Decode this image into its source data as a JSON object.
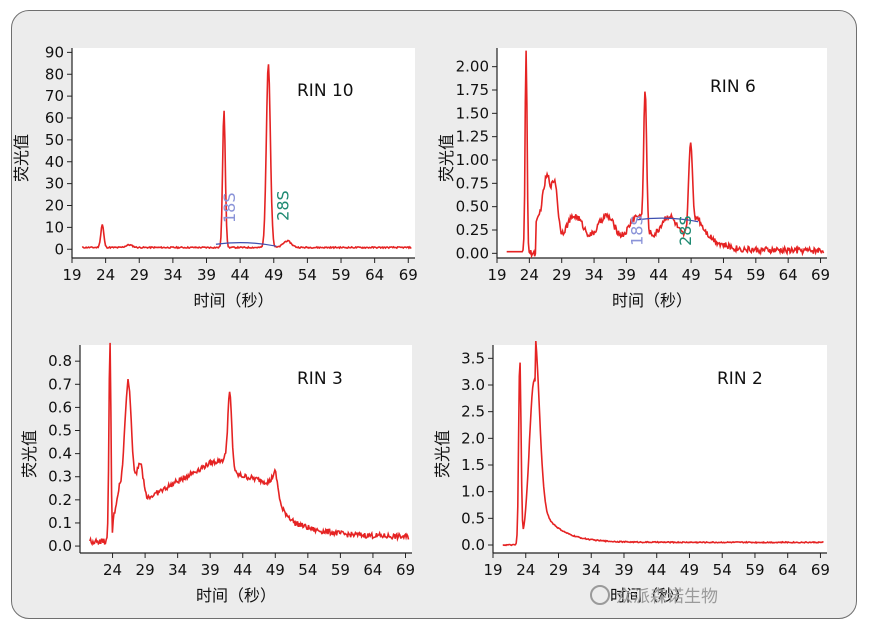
{
  "charts": [
    {
      "id": "rin10",
      "type": "line",
      "rin_label": "RIN 10",
      "ylabel": "荧光值",
      "xlabel": "时间（秒）",
      "xlim": [
        19,
        70
      ],
      "ylim": [
        -4,
        92
      ],
      "xticks": [
        "19",
        "24",
        "29",
        "34",
        "39",
        "44",
        "49",
        "54",
        "59",
        "64",
        "69"
      ],
      "yticks": [
        "0",
        "10",
        "20",
        "30",
        "40",
        "50",
        "60",
        "70",
        "80",
        "90"
      ],
      "annotations": [
        {
          "text": "18S",
          "x": 43.2,
          "y": 12,
          "color": "#8a93d8"
        },
        {
          "text": "28S",
          "x": 51.2,
          "y": 13,
          "color": "#1f8a72"
        }
      ],
      "peaks": [
        {
          "x": 23.5,
          "h": 10.5,
          "w": 0.22
        },
        {
          "x": 27.5,
          "h": 1.2,
          "w": 0.5
        },
        {
          "x": 41.6,
          "h": 63,
          "w": 0.2
        },
        {
          "x": 48.2,
          "h": 84,
          "w": 0.3
        },
        {
          "x": 51.0,
          "h": 3,
          "w": 0.6
        }
      ],
      "baseline": 0.8,
      "noise": 0.3
    },
    {
      "id": "rin6",
      "type": "line",
      "rin_label": "RIN 6",
      "ylabel": "荧光值",
      "xlabel": "时间（秒）",
      "xlim": [
        19,
        70
      ],
      "ylim": [
        -0.05,
        2.2
      ],
      "xticks": [
        "19",
        "24",
        "29",
        "34",
        "39",
        "44",
        "49",
        "54",
        "59",
        "64",
        "69"
      ],
      "yticks": [
        "0.00",
        "0.25",
        "0.50",
        "0.75",
        "1.00",
        "1.25",
        "1.50",
        "1.75",
        "2.00"
      ],
      "annotations": [
        {
          "text": "18S",
          "x": 41.5,
          "y": 0.08,
          "color": "#8a93d8"
        },
        {
          "text": "28S",
          "x": 49.0,
          "y": 0.08,
          "color": "#1f8a72"
        }
      ],
      "peaks": [
        {
          "x": 23.5,
          "h": 2.2,
          "w": 0.15
        },
        {
          "x": 26.8,
          "h": 0.45,
          "w": 0.6
        },
        {
          "x": 28.0,
          "h": 0.48,
          "w": 0.4
        },
        {
          "x": 41.9,
          "h": 1.45,
          "w": 0.22
        },
        {
          "x": 48.9,
          "h": 0.95,
          "w": 0.28
        }
      ],
      "hump": {
        "start": 25,
        "end": 50,
        "level": 0.4,
        "tail": 0.03
      },
      "noise": 0.035
    },
    {
      "id": "rin3",
      "type": "line",
      "rin_label": "RIN 3",
      "ylabel": "荧光值",
      "xlabel": "时间（秒）",
      "xlim": [
        19,
        70
      ],
      "ylim": [
        -0.03,
        0.87
      ],
      "xticks": [
        "24",
        "29",
        "34",
        "39",
        "44",
        "49",
        "54",
        "59",
        "64",
        "69"
      ],
      "yticks": [
        "0.0",
        "0.1",
        "0.2",
        "0.3",
        "0.4",
        "0.5",
        "0.6",
        "0.7",
        "0.8"
      ],
      "annotations": [],
      "peaks": [
        {
          "x": 23.6,
          "h": 0.87,
          "w": 0.15
        },
        {
          "x": 26.4,
          "h": 0.48,
          "w": 0.5
        },
        {
          "x": 28.2,
          "h": 0.15,
          "w": 0.5
        },
        {
          "x": 42.0,
          "h": 0.28,
          "w": 0.3
        },
        {
          "x": 49.0,
          "h": 0.05,
          "w": 0.4
        }
      ],
      "ramp": [
        [
          24,
          0.1
        ],
        [
          25,
          0.25
        ],
        [
          29,
          0.2
        ],
        [
          34,
          0.28
        ],
        [
          39,
          0.36
        ],
        [
          42,
          0.38
        ],
        [
          43,
          0.31
        ],
        [
          49,
          0.27
        ],
        [
          50,
          0.16
        ],
        [
          52,
          0.1
        ],
        [
          55,
          0.07
        ],
        [
          60,
          0.05
        ],
        [
          69,
          0.04
        ]
      ],
      "noise": 0.012
    },
    {
      "id": "rin2",
      "type": "line",
      "rin_label": "RIN 2",
      "ylabel": "荧光值",
      "xlabel": "时间（秒）",
      "xlim": [
        19,
        70
      ],
      "ylim": [
        -0.15,
        3.75
      ],
      "xticks": [
        "19",
        "24",
        "29",
        "34",
        "39",
        "44",
        "49",
        "54",
        "59",
        "64",
        "69"
      ],
      "yticks": [
        "0.0",
        "0.5",
        "1.0",
        "1.5",
        "2.0",
        "2.5",
        "3.0",
        "3.5"
      ],
      "annotations": [],
      "peaks": [
        {
          "x": 23.1,
          "h": 3.45,
          "w": 0.18
        },
        {
          "x": 25.3,
          "h": 3.1,
          "w": 0.75
        }
      ],
      "decay": {
        "start": 25.5,
        "amp": 0.85,
        "tau": 3.0,
        "floor": 0.05
      },
      "noise": 0.01
    }
  ],
  "watermark": "众派森诺生物"
}
